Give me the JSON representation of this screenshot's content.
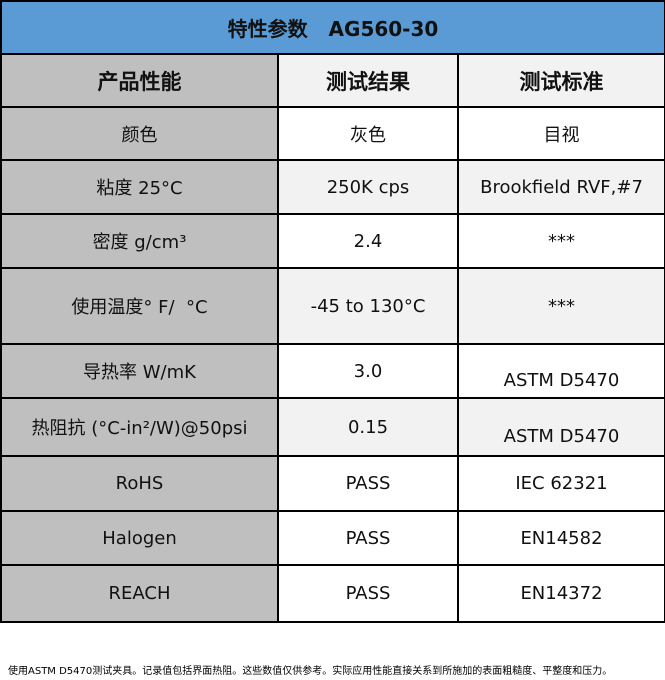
{
  "title": "特性参数   AG560-30",
  "headers": [
    "产品性能",
    "测试结果",
    "测试标准"
  ],
  "rows": [
    {
      "property": "颜色",
      "result": "灰色",
      "standard": "目视"
    },
    {
      "property": "粘度 25°C",
      "result": "250K cps",
      "standard": "Brookfield RVF,#7"
    },
    {
      "property": "密度 g/cm³",
      "result": "2.4",
      "standard": "***"
    },
    {
      "property": "使用温度° F/  °C",
      "result": "-45 to 130°C",
      "standard": "***"
    },
    {
      "property": "导热率 W/mK",
      "result": "3.0",
      "standard": "ASTM D5470"
    },
    {
      "property": "热阻抗 (°C-in²/W)@50psi",
      "result": "0.15",
      "standard": "ASTM D5470"
    },
    {
      "property": "RoHS",
      "result": "PASS",
      "standard": "IEC 62321"
    },
    {
      "property": "Halogen",
      "result": "PASS",
      "standard": "EN14582"
    },
    {
      "property": "REACH",
      "result": "PASS",
      "standard": "EN14372"
    }
  ],
  "footnote": "使用ASTM D5470测试夹具。记录值包括界面热阻。这些数值仅供参考。实际应用性能直接关系到所施加的表面粗糙度、平整度和压力。",
  "colors": {
    "title_bg": "#5b9bd5",
    "property_bg": "#bfbfbf",
    "alt_row_bg": "#f2f2f2"
  }
}
